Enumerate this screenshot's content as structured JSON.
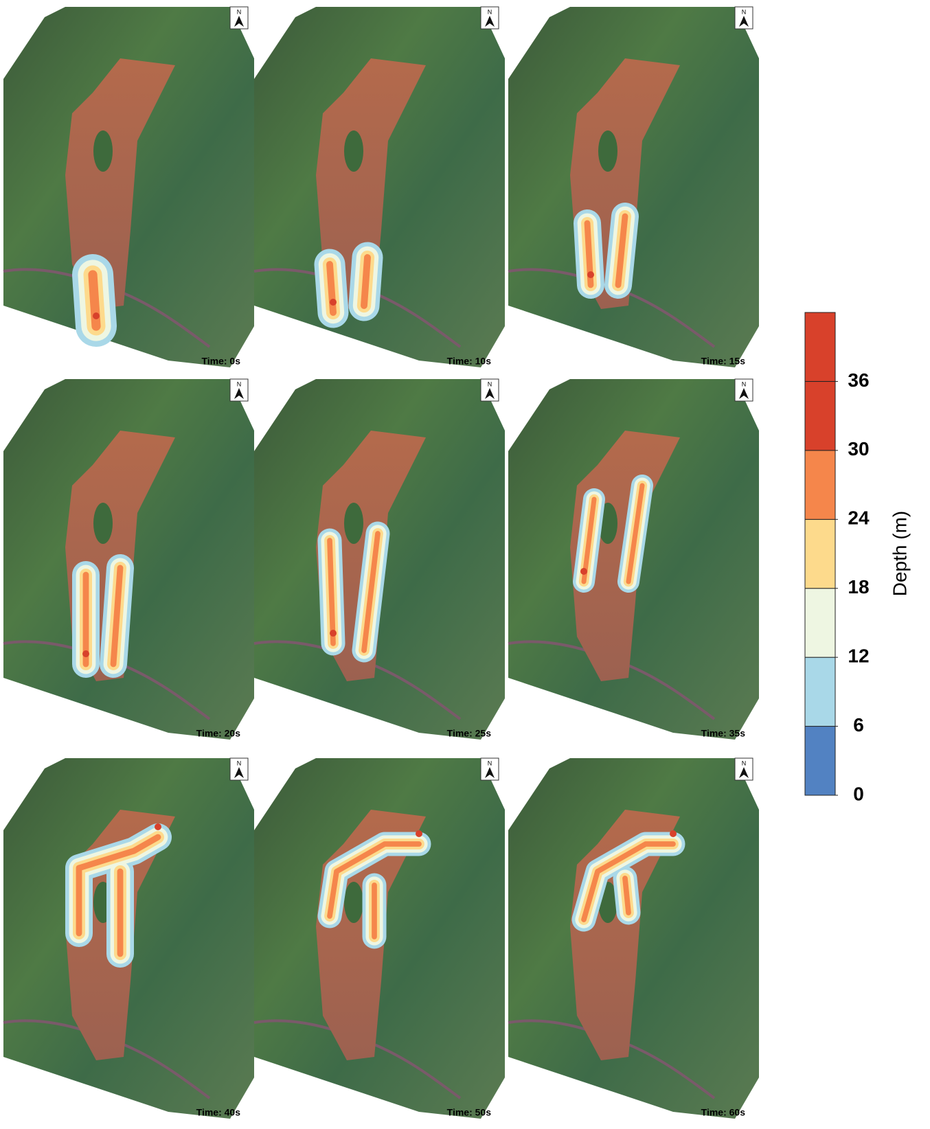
{
  "panels": [
    "Time: 0s",
    "Time: 10s",
    "Time: 15s",
    "Time: 20s",
    "Time: 25s",
    "Time: 35s",
    "Time: 40s",
    "Time: 50s",
    "Time: 60s"
  ],
  "north_label": "N",
  "colorbar": {
    "label": "Depth (m)",
    "lim": [
      0,
      42
    ],
    "ticks": [
      0,
      6,
      12,
      18,
      24,
      30,
      36
    ],
    "colors": [
      "#5282c2",
      "#a9d8e8",
      "#eef6e2",
      "#fdda8c",
      "#f5864b",
      "#d8412b",
      "#d8412b"
    ]
  }
}
